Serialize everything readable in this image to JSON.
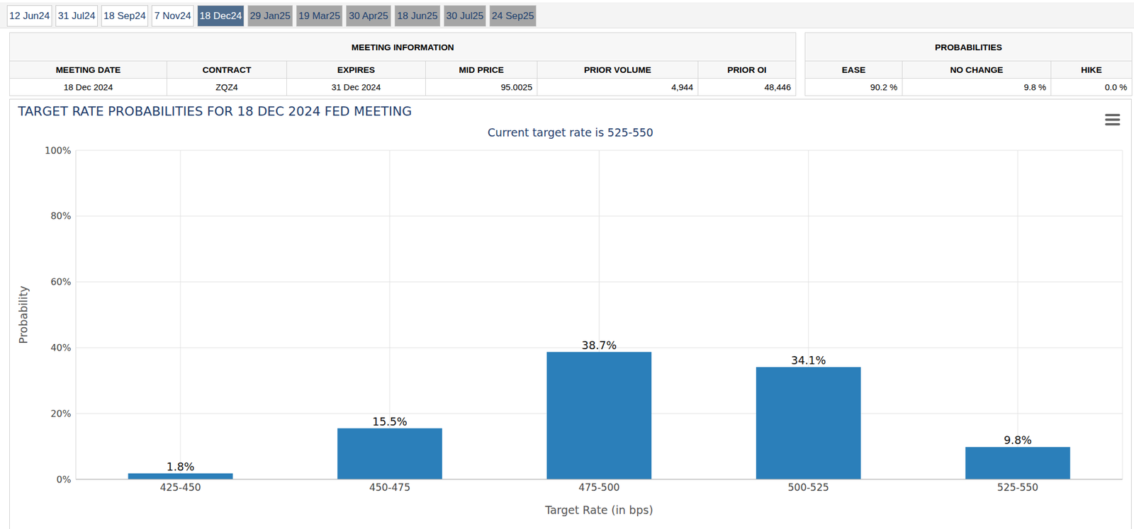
{
  "tabs": [
    "12 Jun24",
    "31 Jul24",
    "18 Sep24",
    "7 Nov24",
    "18 Dec24",
    "29 Jan25",
    "19 Mar25",
    "30 Apr25",
    "18 Jun25",
    "30 Jul25",
    "24 Sep25"
  ],
  "active_tab": "18 Dec24",
  "meeting_information": {
    "title": "MEETING INFORMATION",
    "columns": [
      "MEETING DATE",
      "CONTRACT",
      "EXPIRES",
      "MID PRICE",
      "PRIOR VOLUME",
      "PRIOR OI"
    ],
    "rows": [
      [
        "18 Dec 2024",
        "ZQZ4",
        "31 Dec 2024",
        "95.0025",
        "4,944",
        "48,446"
      ]
    ]
  },
  "probabilities": {
    "title": "PROBABILITIES",
    "columns": [
      "EASE",
      "NO CHANGE",
      "HIKE"
    ],
    "rows": [
      [
        "90.2 %",
        "9.8 %",
        "0.0 %"
      ]
    ]
  },
  "chart_data": {
    "type": "bar",
    "title": "TARGET RATE PROBABILITIES FOR 18 DEC 2024 FED MEETING",
    "subtitle": "Current target rate is 525-550",
    "x_label": "Target Rate (in bps)",
    "y_label": "Probability",
    "categories": [
      "425-450",
      "450-475",
      "475-500",
      "500-525",
      "525-550"
    ],
    "values": [
      1.8,
      15.5,
      38.7,
      34.1,
      9.8
    ],
    "value_labels": [
      "1.8%",
      "15.5%",
      "38.7%",
      "34.1%",
      "9.8%"
    ],
    "color": "#2b7fba",
    "ylim": [
      0,
      100
    ],
    "yticks": [
      {
        "value": 0,
        "label": "0%"
      },
      {
        "value": 20,
        "label": "20%"
      },
      {
        "value": 40,
        "label": "40%"
      },
      {
        "value": 60,
        "label": "60%"
      },
      {
        "value": 80,
        "label": "80%"
      },
      {
        "value": 100,
        "label": "100%"
      }
    ],
    "grid": true,
    "data_labels": true
  }
}
